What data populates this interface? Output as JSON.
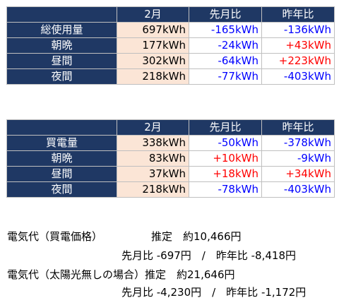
{
  "colors": {
    "header_bg": "#1f3864",
    "value_bg": "#fbe5d6",
    "negative": "#0000ff",
    "positive": "#ff0000"
  },
  "table1": {
    "headers": [
      "",
      "2月",
      "先月比",
      "昨年比"
    ],
    "rows": [
      {
        "label": "総使用量",
        "value": "697kWh",
        "mom": "-165kWh",
        "yoy": "-136kWh"
      },
      {
        "label": "朝晩",
        "value": "177kWh",
        "mom": "-24kWh",
        "yoy": "+43kWh"
      },
      {
        "label": "昼間",
        "value": "302kWh",
        "mom": "-64kWh",
        "yoy": "+223kWh"
      },
      {
        "label": "夜間",
        "value": "218kWh",
        "mom": "-77kWh",
        "yoy": "-403kWh"
      }
    ]
  },
  "table2": {
    "headers": [
      "",
      "2月",
      "先月比",
      "昨年比"
    ],
    "rows": [
      {
        "label": "買電量",
        "value": "338kWh",
        "mom": "-50kWh",
        "yoy": "-378kWh"
      },
      {
        "label": "朝晩",
        "value": "83kWh",
        "mom": "+10kWh",
        "yoy": "-9kWh"
      },
      {
        "label": "昼間",
        "value": "37kWh",
        "mom": "+18kWh",
        "yoy": "+34kWh"
      },
      {
        "label": "夜間",
        "value": "218kWh",
        "mom": "-78kWh",
        "yoy": "-403kWh"
      }
    ]
  },
  "notes": {
    "purchase_label": "電気代（買電価格）",
    "purchase_estimate": "推定　約10,466円",
    "purchase_compare": "先月比 -697円　/　昨年比 -8,418円",
    "nosolar_label": "電気代（太陽光無しの場合）推定　約21,646円",
    "nosolar_compare": "先月比 -4,230円　/　昨年比 -1,172円"
  }
}
